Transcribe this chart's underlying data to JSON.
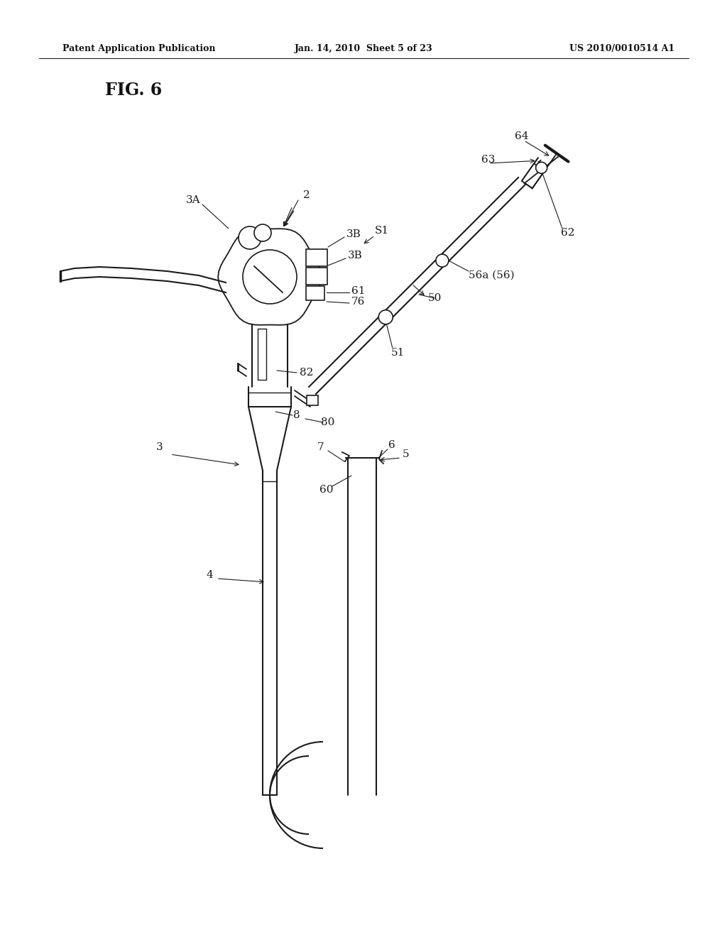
{
  "bg_color": "#ffffff",
  "title_text": "FIG. 6",
  "header_left": "Patent Application Publication",
  "header_center": "Jan. 14, 2010  Sheet 5 of 23",
  "header_right": "US 2010/0010514 A1",
  "color_line": "#1a1a1a",
  "figsize": [
    10.24,
    13.2
  ],
  "dpi": 100
}
